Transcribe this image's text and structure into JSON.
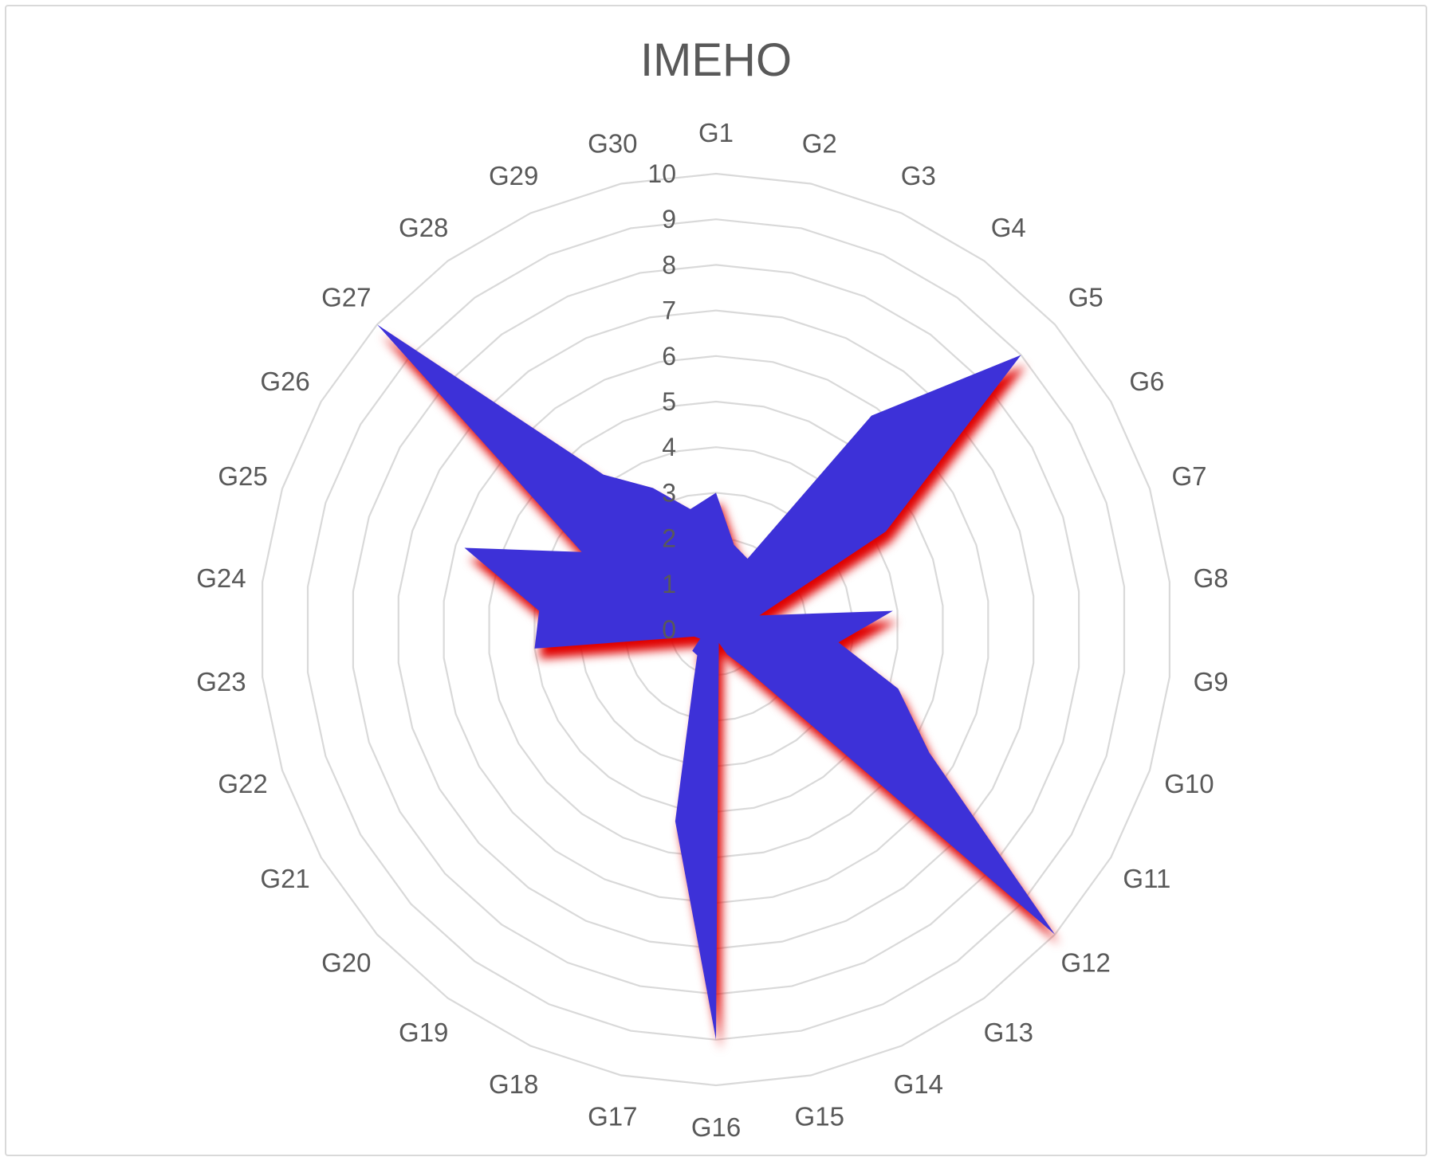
{
  "chart_data": {
    "type": "radar",
    "title": "IMEHO",
    "categories": [
      "G1",
      "G2",
      "G3",
      "G4",
      "G5",
      "G6",
      "G7",
      "G8",
      "G9",
      "G10",
      "G11",
      "G12",
      "G13",
      "G14",
      "G15",
      "G16",
      "G17",
      "G18",
      "G19",
      "G20",
      "G21",
      "G22",
      "G23",
      "G24",
      "G25",
      "G26",
      "G27",
      "G28",
      "G29",
      "G30"
    ],
    "series": [
      {
        "values": [
          3.0,
          1.9,
          1.7,
          5.8,
          9.0,
          4.3,
          1.0,
          3.9,
          2.7,
          4.2,
          5.4,
          10.0,
          1.0,
          0.6,
          0.3,
          9.0,
          4.3,
          1.2,
          0.7,
          0.7,
          0.4,
          0.5,
          4.0,
          3.9,
          5.8,
          3.4,
          10.0,
          4.2,
          3.4,
          2.7
        ]
      }
    ],
    "rlim": [
      0,
      10
    ],
    "ticks": [
      "0",
      "1",
      "2",
      "3",
      "4",
      "5",
      "6",
      "7",
      "8",
      "9",
      "10"
    ],
    "grid": true,
    "legend": "none",
    "colors": {
      "fill": "#3d31d8",
      "shadow": "#e00000",
      "grid": "#d9d9d9",
      "text": "#595959"
    }
  }
}
